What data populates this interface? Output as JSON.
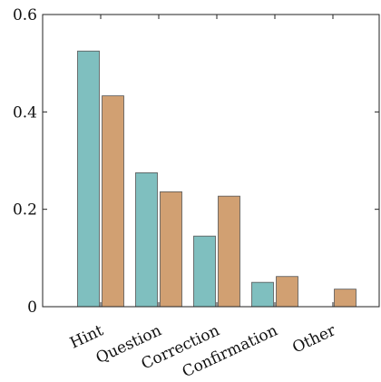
{
  "chart_data": {
    "type": "bar",
    "categories": [
      "Hint",
      "Question",
      "Correction",
      "Confirmation",
      "Other"
    ],
    "series": [
      {
        "values": [
          0.525,
          0.275,
          0.145,
          0.05,
          null
        ],
        "color": "#7fbfbf"
      },
      {
        "values": [
          0.433,
          0.236,
          0.227,
          0.062,
          0.036
        ],
        "color": "#d1a072"
      }
    ],
    "ylim": [
      0,
      0.6
    ],
    "yticks": [
      0,
      0.2,
      0.4,
      0.6
    ],
    "ytick_labels": [
      "0",
      "0.2",
      "0.4",
      "0.6"
    ],
    "grid": false,
    "legend": "none"
  }
}
